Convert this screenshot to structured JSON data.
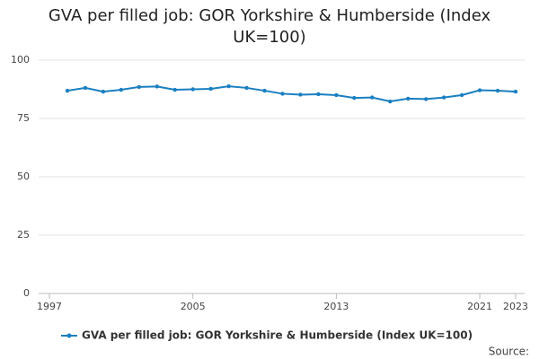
{
  "chart_data": {
    "type": "line",
    "title": "GVA per filled job: GOR Yorkshire & Humberside (Index UK=100)",
    "x": [
      1998,
      1999,
      2000,
      2001,
      2002,
      2003,
      2004,
      2005,
      2006,
      2007,
      2008,
      2009,
      2010,
      2011,
      2012,
      2013,
      2014,
      2015,
      2016,
      2017,
      2018,
      2019,
      2020,
      2021,
      2022,
      2023
    ],
    "series": [
      {
        "name": "GVA per filled job: GOR Yorkshire & Humberside (Index UK=100)",
        "color": "#1a7fc1",
        "values": [
          86.9,
          88.1,
          86.5,
          87.3,
          88.5,
          88.7,
          87.3,
          87.5,
          87.7,
          88.8,
          88.1,
          86.9,
          85.6,
          85.2,
          85.4,
          85.0,
          83.8,
          84.0,
          82.3,
          83.5,
          83.3,
          84.0,
          85.0,
          87.1,
          86.9,
          86.5
        ]
      }
    ],
    "xlim": [
      1997,
      2023
    ],
    "xticks": [
      1997,
      2005,
      2013,
      2021,
      2023
    ],
    "ylim": [
      0,
      100
    ],
    "yticks": [
      0,
      25,
      50,
      75,
      100
    ],
    "grid": true,
    "legend": "bottom",
    "source": "Source:"
  }
}
